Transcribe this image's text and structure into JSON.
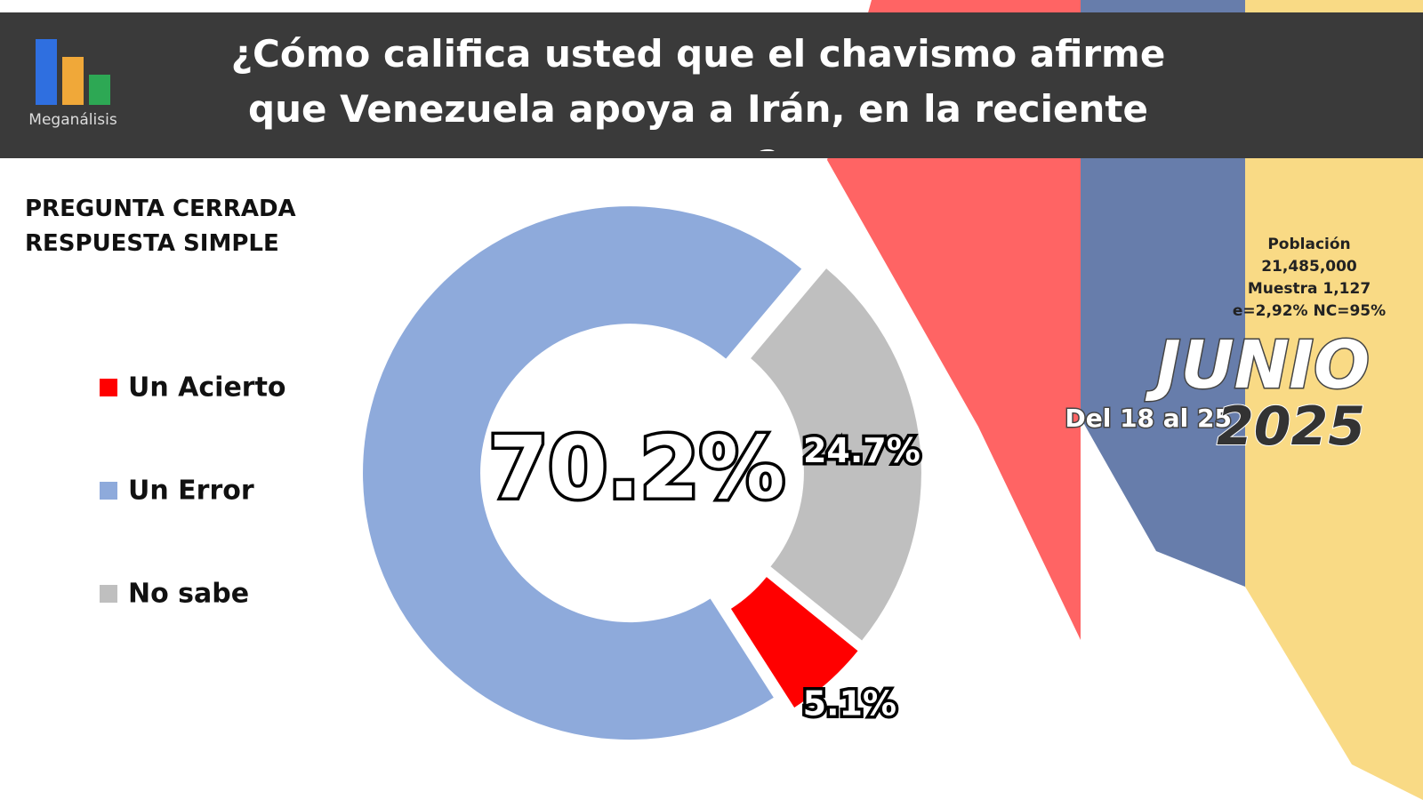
{
  "chart_data": {
    "type": "donut",
    "title": "¿Cómo califica usted que el chavismo afirme que Venezuela apoya a Irán, en la reciente guerra?",
    "source": "Meganálisis",
    "notes": [
      "PREGUNTA CERRADA",
      "RESPUESTA SIMPLE"
    ],
    "sample": [
      "Población",
      "21,485,000",
      "Muestra 1,127",
      "e=2,92%  NC=95%"
    ],
    "period": {
      "month": "JUNIO",
      "range": "Del 18 al 25",
      "year": "2025"
    },
    "categories": [
      "Un Acierto",
      "Un Error",
      "No sabe"
    ],
    "values": [
      5.1,
      70.2,
      24.7
    ],
    "value_labels": [
      "5.1%",
      "70.2%",
      "24.7%"
    ],
    "colors": [
      "#ff0000",
      "#8eaadb",
      "#bfbfbf"
    ]
  }
}
